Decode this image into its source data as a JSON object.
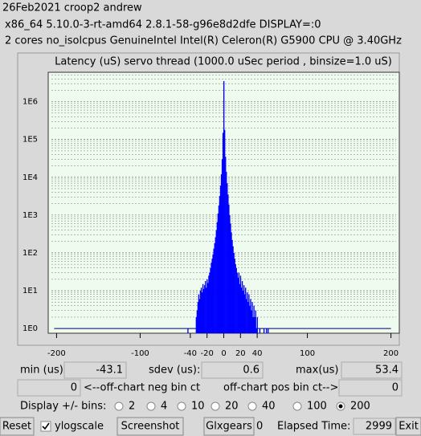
{
  "header": {
    "lines": [
      "26Feb2021 croop2 andrew",
      "x86_64  5.10.0-3-rt-amd64  2.8.1-58-g96e8d2dfe  DISPLAY=:0",
      "2 cores  no_isolcpus  GenuineIntel  Intel(R) Celeron(R) G5900 CPU @ 3.40GHz"
    ]
  },
  "chart_data": {
    "type": "histogram",
    "title": "Latency (uS) servo thread (1000.0 uSec period , binsize=1.0 uS)",
    "color": "#0000ff",
    "log_y": true,
    "grid": true,
    "x": [
      -43,
      -42,
      -41,
      -40,
      -39,
      -38,
      -37,
      -36,
      -35,
      -34,
      -33,
      -32,
      -31,
      -30,
      -29,
      -28,
      -27,
      -26,
      -25,
      -24,
      -23,
      -22,
      -21,
      -20,
      -19,
      -18,
      -17,
      -16,
      -15,
      -14,
      -13,
      -12,
      -11,
      -10,
      -9,
      -8,
      -7,
      -6,
      -5,
      -4,
      -3,
      -2,
      -1,
      0,
      1,
      2,
      3,
      4,
      5,
      6,
      7,
      8,
      9,
      10,
      11,
      12,
      13,
      14,
      15,
      16,
      17,
      18,
      19,
      20,
      21,
      22,
      23,
      24,
      25,
      26,
      27,
      28,
      29,
      30,
      31,
      32,
      33,
      34,
      35,
      36,
      37,
      38,
      39,
      40,
      41,
      42,
      43,
      44,
      45,
      46,
      47,
      48,
      49,
      50,
      51,
      52,
      53
    ],
    "values": [
      1,
      0,
      0,
      0,
      0,
      0,
      0,
      0,
      0,
      0,
      2,
      3,
      5,
      8,
      6,
      10,
      12,
      9,
      15,
      11,
      14,
      18,
      12,
      20,
      16,
      25,
      30,
      40,
      55,
      70,
      90,
      130,
      180,
      260,
      400,
      650,
      1100,
      1800,
      3200,
      6000,
      12000,
      30000,
      150000,
      3500000,
      180000,
      35000,
      14000,
      7000,
      3500,
      1900,
      1000,
      600,
      350,
      220,
      150,
      100,
      70,
      50,
      40,
      30,
      22,
      30,
      15,
      25,
      12,
      18,
      10,
      14,
      8,
      12,
      6,
      9,
      5,
      8,
      4,
      6,
      3,
      5,
      2,
      4,
      2,
      3,
      1,
      2,
      0,
      0,
      1,
      0,
      0,
      0,
      0,
      1,
      0,
      0,
      1,
      0,
      1
    ],
    "xlim": [
      -210,
      210
    ],
    "xticks": [
      -200,
      -100,
      -40,
      -20,
      0,
      20,
      40,
      100,
      200
    ],
    "ylim": [
      0.75,
      6000000
    ],
    "yticks": [
      {
        "value": 1,
        "label": "1E0"
      },
      {
        "value": 10,
        "label": "1E1"
      },
      {
        "value": 100,
        "label": "1E2"
      },
      {
        "value": 1000,
        "label": "1E3"
      },
      {
        "value": 10000,
        "label": "1E4"
      },
      {
        "value": 100000,
        "label": "1E5"
      },
      {
        "value": 1000000,
        "label": "1E6"
      }
    ]
  },
  "stats": {
    "min_label": "min (us)",
    "min": "-43.1",
    "sdev_label": "sdev (us):",
    "sdev": "0.6",
    "max_label": "max(us)",
    "max": "53.4",
    "neg_count": "0",
    "neg_label": "<--off-chart neg bin ct",
    "pos_label": "off-chart pos bin ct-->",
    "pos_count": "0"
  },
  "display_bins": {
    "label": "Display +/- bins:",
    "options": [
      "2",
      "4",
      "10",
      "20",
      "40",
      "100",
      "200"
    ],
    "selected": 6
  },
  "controls": {
    "reset": "Reset",
    "ylogscale": "ylogscale",
    "ylogscale_checked": true,
    "screenshot": "Screenshot",
    "glxgears": "Glxgears",
    "glxgears_count": "0",
    "elapsed_label": "Elapsed Time:",
    "elapsed": "2999",
    "exit": "Exit"
  }
}
